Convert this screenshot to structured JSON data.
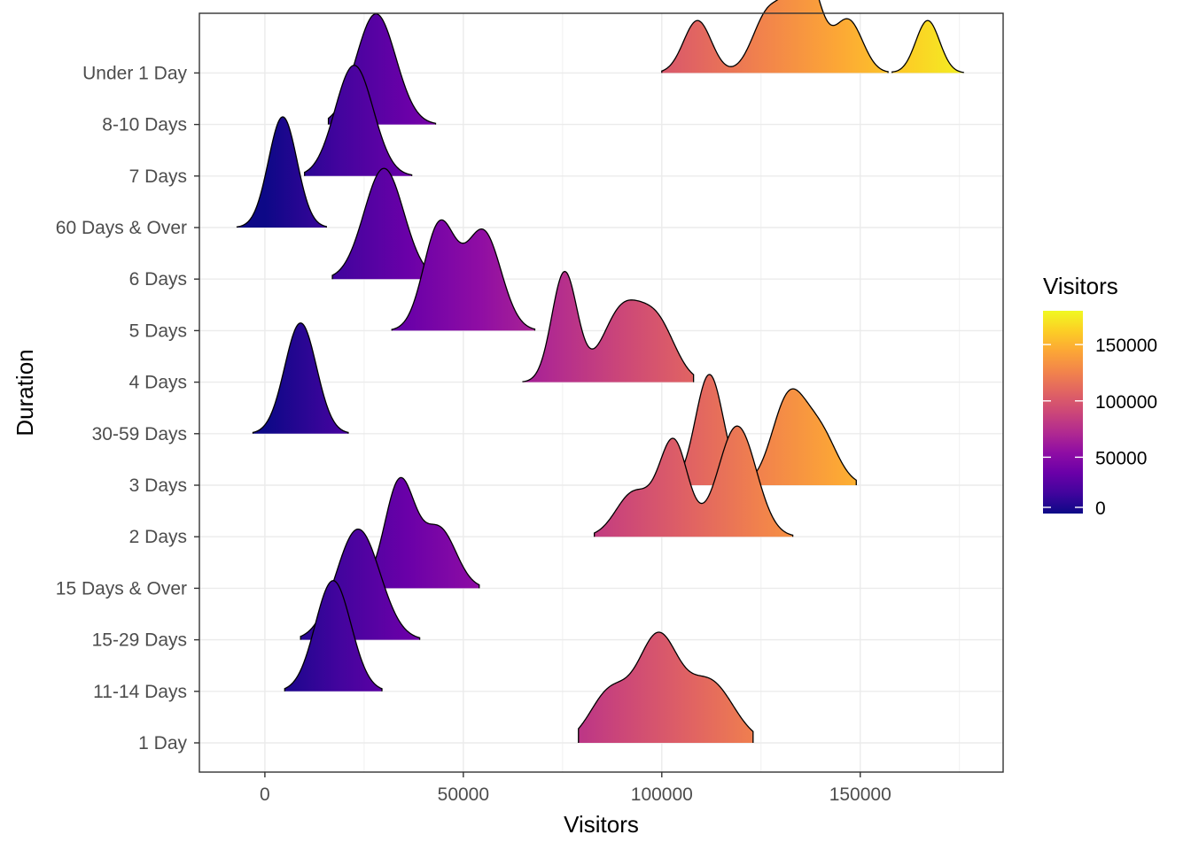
{
  "chart_data": {
    "type": "ridgeline",
    "xlabel": "Visitors",
    "ylabel": "Duration",
    "xlim": [
      -16500,
      186000
    ],
    "x_ticks": [
      0,
      50000,
      100000,
      150000
    ],
    "x_tick_labels": [
      "0",
      "50000",
      "100000",
      "150000"
    ],
    "grid": true,
    "fill_scale": "plasma",
    "categories": [
      "1 Day",
      "11-14 Days",
      "15-29 Days",
      "15 Days & Over",
      "2 Days",
      "3 Days",
      "30-59 Days",
      "4 Days",
      "5 Days",
      "6 Days",
      "60 Days & Over",
      "7 Days",
      "8-10 Days",
      "Under 1 Day"
    ],
    "series": [
      {
        "category": "1 Day",
        "range": [
          79000,
          123000
        ],
        "peaks": [
          [
            87000,
            0.5,
            5000
          ],
          [
            99000,
            1.0,
            5000
          ],
          [
            112000,
            0.6,
            6000
          ]
        ]
      },
      {
        "category": "11-14 Days",
        "range": [
          5000,
          29500
        ],
        "peaks": [
          [
            17200,
            1.0,
            4500
          ]
        ]
      },
      {
        "category": "15-29 Days",
        "range": [
          9000,
          39000
        ],
        "peaks": [
          [
            23500,
            1.0,
            5500
          ]
        ]
      },
      {
        "category": "15 Days & Over",
        "range": [
          24000,
          54000
        ],
        "peaks": [
          [
            34000,
            1.0,
            3800
          ],
          [
            44000,
            0.55,
            4200
          ]
        ]
      },
      {
        "category": "2 Days",
        "range": [
          83000,
          133000
        ],
        "peaks": [
          [
            93000,
            0.4,
            4500
          ],
          [
            103000,
            0.85,
            3600
          ],
          [
            119000,
            1.0,
            4800
          ]
        ]
      },
      {
        "category": "3 Days",
        "range": [
          101000,
          149000
        ],
        "peaks": [
          [
            112000,
            1.0,
            3500
          ],
          [
            132000,
            0.78,
            4200
          ],
          [
            140000,
            0.45,
            4200
          ]
        ]
      },
      {
        "category": "30-59 Days",
        "range": [
          -3000,
          21000
        ],
        "peaks": [
          [
            9000,
            1.0,
            4000
          ]
        ]
      },
      {
        "category": "4 Days",
        "range": [
          65000,
          108000
        ],
        "peaks": [
          [
            75500,
            1.0,
            3200
          ],
          [
            90000,
            0.65,
            5000
          ],
          [
            99000,
            0.5,
            4500
          ]
        ]
      },
      {
        "category": "5 Days",
        "range": [
          32000,
          68000
        ],
        "peaks": [
          [
            44000,
            0.85,
            4000
          ],
          [
            55000,
            0.8,
            4500
          ]
        ]
      },
      {
        "category": "6 Days",
        "range": [
          17000,
          43000
        ],
        "peaks": [
          [
            30000,
            1.0,
            5000
          ]
        ]
      },
      {
        "category": "60 Days & Over",
        "range": [
          -7000,
          15500
        ],
        "peaks": [
          [
            4500,
            1.0,
            3600
          ]
        ]
      },
      {
        "category": "7 Days",
        "range": [
          10000,
          37000
        ],
        "peaks": [
          [
            22500,
            1.0,
            4800
          ]
        ]
      },
      {
        "category": "8-10 Days",
        "range": [
          16000,
          43000
        ],
        "peaks": [
          [
            28000,
            1.0,
            5000
          ]
        ]
      },
      {
        "category": "Under 1 Day",
        "range": [
          100000,
          176000
        ],
        "peaks": [
          [
            109000,
            0.45,
            3500
          ],
          [
            127000,
            0.52,
            4000
          ],
          [
            136000,
            0.9,
            3800
          ],
          [
            147000,
            0.45,
            3600
          ],
          [
            167000,
            0.45,
            3000
          ]
        ],
        "gap": [
          157000,
          158000
        ]
      }
    ],
    "legend": {
      "title": "Visitors",
      "range": [
        0,
        180000
      ],
      "ticks": [
        0,
        50000,
        100000,
        150000
      ],
      "tick_labels": [
        "0",
        "50000",
        "100000",
        "150000"
      ],
      "placement": "right"
    }
  }
}
